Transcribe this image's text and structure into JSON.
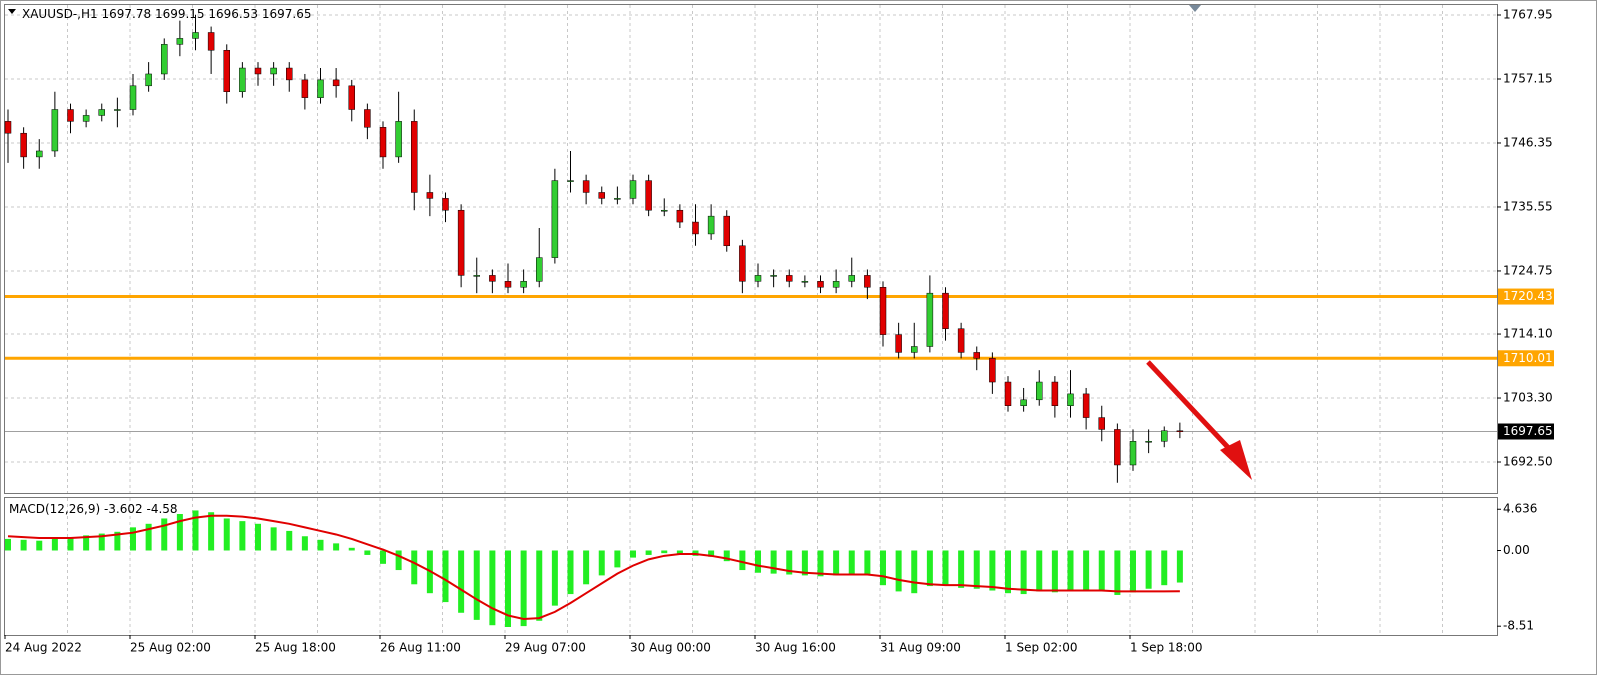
{
  "chart_data": {
    "type": "candlestick",
    "symbol": "XAUUSD-,H1",
    "categories": [
      "24 Aug 2022",
      null,
      null,
      null,
      null,
      null,
      null,
      null,
      "25 Aug 02:00",
      null,
      null,
      null,
      null,
      null,
      null,
      null,
      "25 Aug 18:00",
      null,
      null,
      null,
      null,
      null,
      null,
      null,
      "26 Aug 11:00",
      null,
      null,
      null,
      null,
      null,
      null,
      null,
      "29 Aug 07:00",
      null,
      null,
      null,
      null,
      null,
      null,
      null,
      "30 Aug 00:00",
      null,
      null,
      null,
      null,
      null,
      null,
      null,
      "30 Aug 16:00",
      null,
      null,
      null,
      null,
      null,
      null,
      null,
      "31 Aug 09:00",
      null,
      null,
      null,
      null,
      null,
      null,
      null,
      "1 Sep 02:00",
      null,
      null,
      null,
      null,
      null,
      null,
      null,
      "1 Sep 18:00",
      null,
      null,
      null
    ],
    "open": [
      1750,
      1748,
      1744,
      1745,
      1752,
      1750,
      1751,
      1752,
      1752,
      1756,
      1758,
      1763,
      1764,
      1765,
      1762,
      1755,
      1759,
      1758,
      1759,
      1757,
      1754,
      1757,
      1756,
      1752,
      1749,
      1744,
      1750,
      1738,
      1737,
      1735,
      1724,
      1724,
      1723,
      1722,
      1723,
      1727,
      1740,
      1740,
      1738,
      1737,
      1737,
      1740,
      1735,
      1735,
      1733,
      1731,
      1734,
      1729,
      1723,
      1724,
      1724,
      1723,
      1723,
      1722,
      1723,
      1724,
      1722,
      1714,
      1711,
      1712,
      1721,
      1715,
      1711,
      1710,
      1706,
      1702,
      1703,
      1706,
      1702,
      1704,
      1700,
      1698,
      1692,
      1696,
      1696,
      1697.78
    ],
    "high": [
      1752,
      1749,
      1747,
      1755,
      1753,
      1752,
      1753,
      1754,
      1758,
      1760,
      1764,
      1767,
      1768,
      1766,
      1763,
      1760,
      1760,
      1760,
      1760,
      1758,
      1759,
      1759,
      1757,
      1753,
      1750,
      1755,
      1752,
      1741,
      1738,
      1736,
      1727,
      1725,
      1726,
      1725,
      1732,
      1742,
      1745,
      1741,
      1739,
      1739,
      1741,
      1741,
      1737,
      1736,
      1736,
      1736,
      1735,
      1730,
      1726,
      1725,
      1725,
      1724,
      1724,
      1725,
      1727,
      1725,
      1723,
      1716,
      1716,
      1724,
      1722,
      1716,
      1712,
      1711,
      1707,
      1705,
      1708,
      1707,
      1708,
      1705,
      1702,
      1699,
      1698,
      1698,
      1698.5,
      1699.15
    ],
    "low": [
      1743,
      1742,
      1742,
      1744,
      1748,
      1749,
      1750,
      1749,
      1751,
      1755,
      1757,
      1761,
      1762,
      1758,
      1753,
      1754,
      1756,
      1756,
      1755,
      1752,
      1753,
      1754,
      1750,
      1747,
      1742,
      1743,
      1735,
      1734,
      1733,
      1722,
      1721,
      1721,
      1721,
      1721,
      1722,
      1726,
      1738,
      1736,
      1736,
      1736,
      1736,
      1734,
      1734,
      1732,
      1729,
      1730,
      1728,
      1721,
      1722,
      1722,
      1722,
      1722,
      1721,
      1721,
      1722,
      1720,
      1712,
      1710,
      1710,
      1711,
      1713,
      1710,
      1708,
      1704,
      1701,
      1701,
      1702,
      1700,
      1700,
      1698,
      1696,
      1689,
      1691,
      1694,
      1695,
      1696.53
    ],
    "close": [
      1748,
      1744,
      1745,
      1752,
      1750,
      1751,
      1752,
      1752,
      1756,
      1758,
      1763,
      1764,
      1765,
      1762,
      1755,
      1759,
      1758,
      1759,
      1757,
      1754,
      1757,
      1756,
      1752,
      1749,
      1744,
      1750,
      1738,
      1737,
      1735,
      1724,
      1724,
      1723,
      1722,
      1723,
      1727,
      1740,
      1740,
      1738,
      1737,
      1737,
      1740,
      1735,
      1735,
      1733,
      1731,
      1734,
      1729,
      1723,
      1724,
      1724,
      1723,
      1723,
      1722,
      1723,
      1724,
      1722,
      1714,
      1711,
      1712,
      1721,
      1715,
      1711,
      1710,
      1706,
      1702,
      1703,
      1706,
      1702,
      1704,
      1700,
      1698,
      1692,
      1696,
      1696,
      1697.78,
      1697.65
    ],
    "up_color": "#32cd32",
    "down_color": "#e00000",
    "ylim": [
      1687.27,
      1769.64
    ],
    "yticks": [
      1767.95,
      1757.15,
      1746.35,
      1735.55,
      1724.75,
      {
        "value": 1714.1,
        "label": "1714.10"
      },
      {
        "value": 1703.3,
        "label": "1703.30"
      },
      {
        "value": 1692.5,
        "label": "1692.50"
      }
    ],
    "price_levels": [
      1720.43,
      1710.01
    ],
    "level_color": "#ffa500",
    "current_price": 1697.65,
    "macd": {
      "title": "MACD(12,26,9)",
      "histogram": [
        1.3,
        1.2,
        1.1,
        1.3,
        1.5,
        1.7,
        1.9,
        2.1,
        2.6,
        3.0,
        3.6,
        4.1,
        4.5,
        4.3,
        3.6,
        3.3,
        3.0,
        2.6,
        2.2,
        1.6,
        1.2,
        0.8,
        0.3,
        -0.5,
        -1.5,
        -2.2,
        -3.8,
        -4.8,
        -5.8,
        -7.0,
        -7.8,
        -8.4,
        -8.6,
        -8.5,
        -7.9,
        -6.2,
        -4.9,
        -3.8,
        -2.8,
        -1.9,
        -0.8,
        -0.5,
        -0.3,
        -0.4,
        -0.6,
        -0.7,
        -1.2,
        -2.2,
        -2.5,
        -2.6,
        -2.7,
        -2.8,
        -2.9,
        -2.8,
        -2.6,
        -2.8,
        -3.9,
        -4.6,
        -4.8,
        -4.0,
        -3.9,
        -4.2,
        -4.3,
        -4.5,
        -4.8,
        -4.9,
        -4.6,
        -4.7,
        -4.5,
        -4.5,
        -4.6,
        -5.0,
        -4.7,
        -4.3,
        -3.9,
        -3.602
      ],
      "signal": [
        1.6,
        1.5,
        1.4,
        1.4,
        1.4,
        1.5,
        1.6,
        1.8,
        2.0,
        2.4,
        2.8,
        3.3,
        3.7,
        3.9,
        3.9,
        3.8,
        3.6,
        3.3,
        3.0,
        2.6,
        2.2,
        1.8,
        1.3,
        0.7,
        0.1,
        -0.6,
        -1.4,
        -2.3,
        -3.3,
        -4.4,
        -5.5,
        -6.5,
        -7.3,
        -7.7,
        -7.6,
        -6.9,
        -5.9,
        -4.8,
        -3.7,
        -2.6,
        -1.7,
        -1.0,
        -0.6,
        -0.4,
        -0.4,
        -0.6,
        -0.9,
        -1.3,
        -1.7,
        -2.0,
        -2.3,
        -2.5,
        -2.6,
        -2.7,
        -2.7,
        -2.7,
        -2.9,
        -3.3,
        -3.6,
        -3.8,
        -3.9,
        -3.9,
        -4.0,
        -4.1,
        -4.3,
        -4.4,
        -4.5,
        -4.5,
        -4.5,
        -4.5,
        -4.5,
        -4.6,
        -4.6,
        -4.6,
        -4.6,
        -4.58
      ],
      "histogram_color": "#22ee22",
      "signal_color": "#e00000",
      "ylim": [
        -9.5,
        5.9
      ],
      "yticks": [
        4.636,
        {
          "value": 0,
          "label": "0.00"
        },
        -8.51
      ]
    }
  }
}
